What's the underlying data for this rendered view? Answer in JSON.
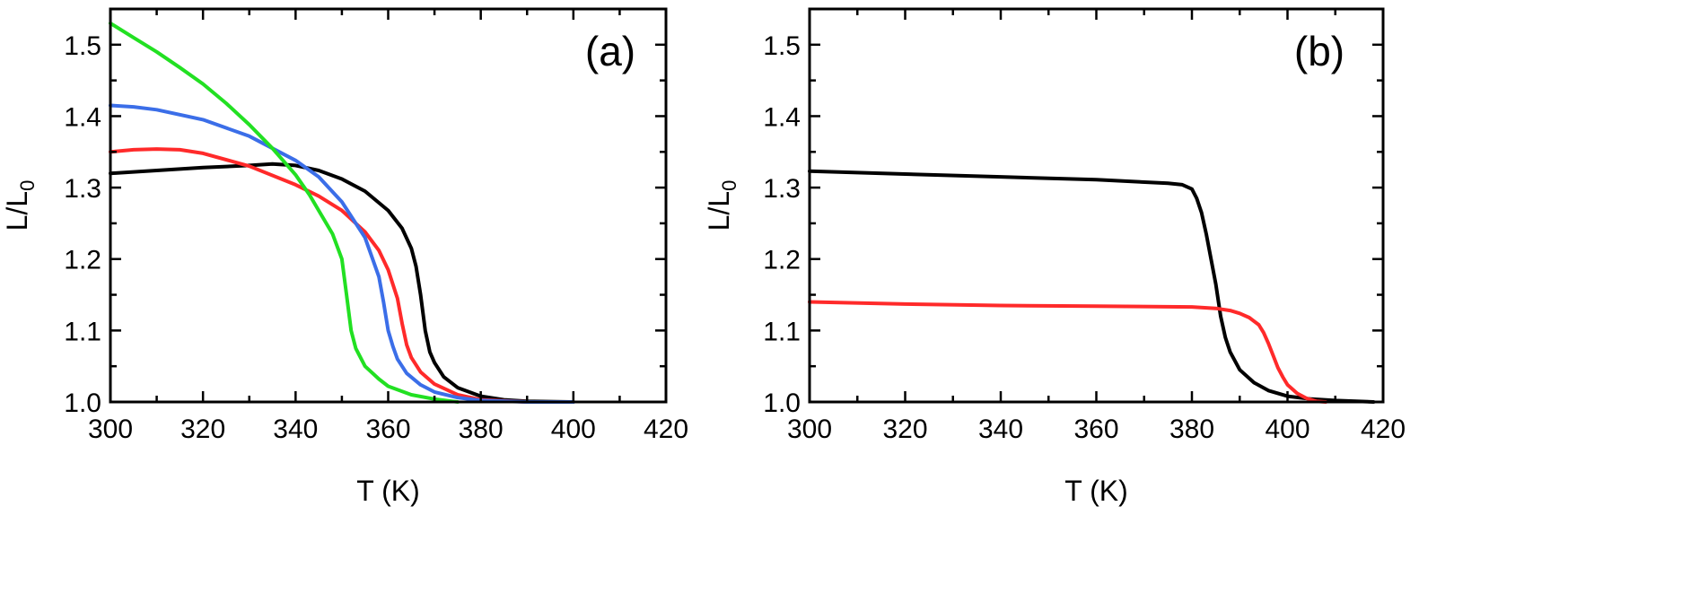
{
  "chart_data": [
    {
      "type": "line",
      "panel_label": "(a)",
      "xlabel": "T (K)",
      "ylabel": "L/L",
      "ylabel_sub": "0",
      "xlim": [
        300,
        420
      ],
      "ylim": [
        1.0,
        1.55
      ],
      "xticks": [
        300,
        320,
        340,
        360,
        380,
        400,
        420
      ],
      "yticks": [
        1.0,
        1.1,
        1.2,
        1.3,
        1.4,
        1.5
      ],
      "xtick_labels": [
        "300",
        "320",
        "340",
        "360",
        "380",
        "400",
        "420"
      ],
      "ytick_labels": [
        "1.0",
        "1.1",
        "1.2",
        "1.3",
        "1.4",
        "1.5"
      ],
      "grid": false,
      "series": [
        {
          "color": "#000000",
          "x": [
            300,
            310,
            320,
            330,
            335,
            340,
            345,
            350,
            355,
            360,
            363,
            365,
            366,
            367,
            368,
            369,
            370,
            372,
            375,
            380,
            385,
            390,
            400
          ],
          "y": [
            1.32,
            1.324,
            1.328,
            1.331,
            1.333,
            1.331,
            1.324,
            1.312,
            1.295,
            1.268,
            1.243,
            1.215,
            1.19,
            1.15,
            1.1,
            1.07,
            1.055,
            1.035,
            1.02,
            1.008,
            1.003,
            1.001,
            1.0
          ]
        },
        {
          "color": "#ff2a2a",
          "x": [
            300,
            305,
            310,
            315,
            320,
            330,
            340,
            345,
            350,
            355,
            358,
            360,
            362,
            363,
            364,
            365,
            367,
            370,
            375,
            380,
            390
          ],
          "y": [
            1.35,
            1.353,
            1.354,
            1.353,
            1.348,
            1.33,
            1.304,
            1.288,
            1.268,
            1.238,
            1.212,
            1.185,
            1.145,
            1.11,
            1.08,
            1.062,
            1.042,
            1.025,
            1.01,
            1.003,
            1.0
          ]
        },
        {
          "color": "#3b6ee8",
          "x": [
            300,
            305,
            310,
            320,
            330,
            340,
            345,
            350,
            355,
            358,
            359,
            360,
            361,
            362,
            364,
            367,
            370,
            375,
            380,
            390,
            400
          ],
          "y": [
            1.415,
            1.413,
            1.409,
            1.395,
            1.372,
            1.338,
            1.315,
            1.28,
            1.23,
            1.175,
            1.14,
            1.1,
            1.078,
            1.06,
            1.04,
            1.024,
            1.014,
            1.006,
            1.002,
            1.0,
            1.0
          ]
        },
        {
          "color": "#22e022",
          "x": [
            300,
            305,
            310,
            315,
            320,
            325,
            330,
            335,
            340,
            343,
            345,
            348,
            350,
            351,
            352,
            353,
            355,
            358,
            360,
            365,
            370,
            375
          ],
          "y": [
            1.53,
            1.51,
            1.49,
            1.468,
            1.445,
            1.418,
            1.388,
            1.355,
            1.318,
            1.29,
            1.268,
            1.235,
            1.2,
            1.15,
            1.1,
            1.075,
            1.05,
            1.032,
            1.022,
            1.01,
            1.004,
            1.0
          ]
        }
      ]
    },
    {
      "type": "line",
      "panel_label": "(b)",
      "xlabel": "T (K)",
      "ylabel": "L/L",
      "ylabel_sub": "0",
      "xlim": [
        300,
        420
      ],
      "ylim": [
        1.0,
        1.55
      ],
      "xticks": [
        300,
        320,
        340,
        360,
        380,
        400,
        420
      ],
      "yticks": [
        1.0,
        1.1,
        1.2,
        1.3,
        1.4,
        1.5
      ],
      "xtick_labels": [
        "300",
        "320",
        "340",
        "360",
        "380",
        "400",
        "420"
      ],
      "ytick_labels": [
        "1.0",
        "1.1",
        "1.2",
        "1.3",
        "1.4",
        "1.5"
      ],
      "grid": false,
      "series": [
        {
          "color": "#000000",
          "x": [
            300,
            320,
            340,
            360,
            375,
            378,
            380,
            381,
            382,
            383,
            384,
            385,
            386,
            387,
            388,
            390,
            393,
            396,
            400,
            405,
            410,
            418
          ],
          "y": [
            1.323,
            1.319,
            1.315,
            1.311,
            1.306,
            1.304,
            1.298,
            1.285,
            1.265,
            1.235,
            1.2,
            1.165,
            1.12,
            1.09,
            1.07,
            1.045,
            1.027,
            1.016,
            1.008,
            1.004,
            1.002,
            1.0
          ]
        },
        {
          "color": "#ff2a2a",
          "x": [
            300,
            320,
            340,
            360,
            380,
            385,
            388,
            390,
            392,
            394,
            395,
            396,
            397,
            398,
            399,
            400,
            402,
            404,
            406,
            408
          ],
          "y": [
            1.14,
            1.137,
            1.135,
            1.134,
            1.133,
            1.131,
            1.128,
            1.124,
            1.118,
            1.108,
            1.097,
            1.082,
            1.065,
            1.048,
            1.035,
            1.024,
            1.012,
            1.005,
            1.001,
            1.0
          ]
        }
      ]
    }
  ]
}
